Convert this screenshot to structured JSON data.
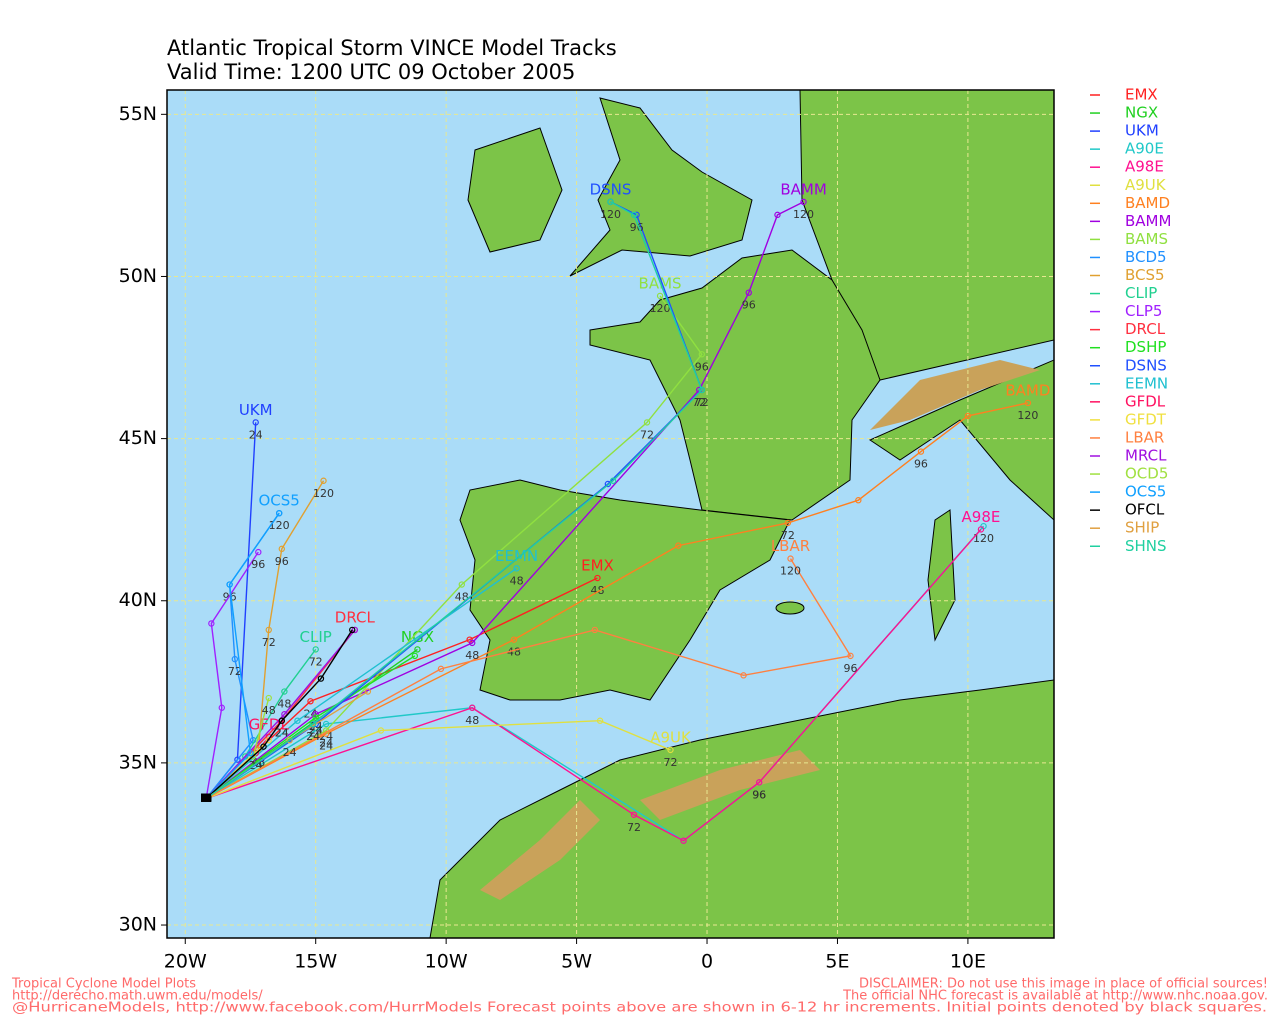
{
  "chart_data": {
    "type": "track-map",
    "title": [
      "Atlantic Tropical Storm VINCE Model Tracks",
      "Valid Time: 1200 UTC 09 October 2005"
    ],
    "footer_left": [
      "Tropical Cyclone Model Plots",
      "http://derecho.math.uwm.edu/models/",
      "@HurricaneModels, http://www.facebook.com/HurrModels  Forecast points above are shown in 6-12 hr increments. Initial points denoted by black squares."
    ],
    "footer_right": [
      "DISCLAIMER: Do not use this image in place of official sources!",
      "The official NHC forecast is available at http://www.nhc.noaa.gov."
    ],
    "xlim": [
      -20.7,
      13.3
    ],
    "ylim": [
      29.6,
      55.75
    ],
    "grid": true,
    "xticks": [
      {
        "value": -20,
        "label": "20W"
      },
      {
        "value": -15,
        "label": "15W"
      },
      {
        "value": -10,
        "label": "10W"
      },
      {
        "value": -5,
        "label": "5W"
      },
      0,
      {
        "value": 5,
        "label": "5E"
      },
      {
        "value": 10,
        "label": "10E"
      }
    ],
    "yticks": [
      {
        "value": 55,
        "label": "55N"
      },
      {
        "value": 50,
        "label": "50N"
      },
      {
        "value": 45,
        "label": "45N"
      },
      {
        "value": 40,
        "label": "40N"
      },
      {
        "value": 35,
        "label": "35N"
      },
      {
        "value": 30,
        "label": "30N"
      }
    ],
    "models": [
      {
        "name": "EMX",
        "color": "#ff2020",
        "labeled": true,
        "points": [
          [
            -19.2,
            33.9
          ],
          [
            -15.2,
            36.9
          ],
          [
            -9.1,
            38.8
          ],
          [
            -4.2,
            40.7
          ]
        ],
        "hours": [
          null,
          24,
          null,
          48
        ]
      },
      {
        "name": "NGX",
        "color": "#20d020",
        "labeled": true,
        "points": [
          [
            -19.2,
            33.9
          ],
          [
            -15.0,
            36.3
          ],
          [
            -11.1,
            38.5
          ]
        ],
        "hours": [
          null,
          24,
          null
        ]
      },
      {
        "name": "UKM",
        "color": "#2040ff",
        "labeled": true,
        "points": [
          [
            -19.2,
            33.9
          ],
          [
            -18.0,
            35.1
          ],
          [
            -17.3,
            45.5
          ]
        ],
        "hours": [
          null,
          null,
          24
        ]
      },
      {
        "name": "A90E",
        "color": "#20c8c8",
        "labeled": false,
        "points": [
          [
            -19.2,
            33.9
          ],
          [
            -14.6,
            36.2
          ],
          [
            -9.0,
            36.7
          ],
          [
            -0.9,
            32.6
          ],
          [
            2.0,
            34.4
          ],
          [
            10.6,
            42.3
          ]
        ],
        "hours": [
          null,
          24,
          null,
          null,
          96,
          120
        ]
      },
      {
        "name": "A98E",
        "color": "#ff1090",
        "labeled": true,
        "points": [
          [
            -19.2,
            33.9
          ],
          [
            -9.0,
            36.7
          ],
          [
            -2.8,
            33.4
          ],
          [
            -0.9,
            32.6
          ],
          [
            2.0,
            34.4
          ],
          [
            10.5,
            42.2
          ]
        ],
        "hours": [
          null,
          48,
          72,
          null,
          96,
          null
        ]
      },
      {
        "name": "A9UK",
        "color": "#e0e040",
        "labeled": true,
        "points": [
          [
            -19.2,
            33.9
          ],
          [
            -12.5,
            36.0
          ],
          [
            -4.1,
            36.3
          ],
          [
            -1.4,
            35.4
          ]
        ],
        "hours": [
          null,
          null,
          null,
          72
        ]
      },
      {
        "name": "BAMD",
        "color": "#ff8020",
        "labeled": true,
        "points": [
          [
            -19.2,
            33.9
          ],
          [
            -14.6,
            35.9
          ],
          [
            -7.4,
            38.8
          ],
          [
            -1.1,
            41.7
          ],
          [
            3.1,
            42.4
          ],
          [
            5.8,
            43.1
          ],
          [
            8.2,
            44.6
          ],
          [
            10.0,
            45.7
          ],
          [
            12.3,
            46.1
          ]
        ],
        "hours": [
          null,
          24,
          48,
          null,
          72,
          null,
          96,
          null,
          120
        ]
      },
      {
        "name": "BAMM",
        "color": "#a000e0",
        "labeled": true,
        "points": [
          [
            -19.2,
            33.9
          ],
          [
            -15.0,
            36.5
          ],
          [
            -9.0,
            38.7
          ],
          [
            -0.3,
            46.5
          ],
          [
            1.6,
            49.5
          ],
          [
            2.7,
            51.9
          ],
          [
            3.7,
            52.3
          ]
        ],
        "hours": [
          null,
          24,
          48,
          72,
          96,
          null,
          120
        ]
      },
      {
        "name": "BAMS",
        "color": "#90e040",
        "labeled": true,
        "points": [
          [
            -19.2,
            33.9
          ],
          [
            -14.6,
            36.0
          ],
          [
            -9.4,
            40.5
          ],
          [
            -2.3,
            45.5
          ],
          [
            -0.2,
            47.6
          ],
          [
            -1.8,
            49.4
          ]
        ],
        "hours": [
          null,
          24,
          48,
          72,
          96,
          120
        ]
      },
      {
        "name": "BCD5",
        "color": "#2090ff",
        "labeled": false,
        "points": [
          [
            -19.2,
            33.9
          ],
          [
            -17.4,
            35.7
          ],
          [
            -18.1,
            38.2
          ],
          [
            -18.3,
            40.5
          ],
          [
            -16.4,
            42.7
          ]
        ],
        "hours": [
          null,
          null,
          72,
          96,
          120
        ]
      },
      {
        "name": "BCS5",
        "color": "#e0a030",
        "labeled": false,
        "points": [
          [
            -19.2,
            33.9
          ],
          [
            -17.2,
            35.4
          ],
          [
            -16.8,
            39.1
          ],
          [
            -16.3,
            41.6
          ],
          [
            -14.7,
            43.7
          ]
        ],
        "hours": [
          null,
          48,
          72,
          96,
          120
        ]
      },
      {
        "name": "CLIP",
        "color": "#20d090",
        "labeled": true,
        "points": [
          [
            -19.2,
            33.9
          ],
          [
            -17.7,
            35.2
          ],
          [
            -16.2,
            37.2
          ],
          [
            -15.0,
            38.5
          ]
        ],
        "hours": [
          null,
          null,
          48,
          72
        ]
      },
      {
        "name": "CLP5",
        "color": "#a020ff",
        "labeled": false,
        "points": [
          [
            -19.2,
            33.9
          ],
          [
            -18.6,
            36.7
          ],
          [
            -19.0,
            39.3
          ],
          [
            -17.2,
            41.5
          ]
        ],
        "hours": [
          null,
          null,
          null,
          96
        ]
      },
      {
        "name": "DRCL",
        "color": "#ff3040",
        "labeled": true,
        "points": [
          [
            -19.2,
            33.9
          ],
          [
            -16.3,
            36.3
          ],
          [
            -13.5,
            39.1
          ]
        ],
        "hours": [
          null,
          24,
          null
        ]
      },
      {
        "name": "DSHP",
        "color": "#20e020",
        "labeled": false,
        "points": [
          [
            -19.2,
            33.9
          ],
          [
            -15.0,
            36.4
          ],
          [
            -11.2,
            38.3
          ]
        ],
        "hours": [
          null,
          24,
          null
        ]
      },
      {
        "name": "DSNS",
        "color": "#2050ff",
        "labeled": true,
        "points": [
          [
            -19.2,
            33.9
          ],
          [
            -15.0,
            36.2
          ],
          [
            -3.8,
            43.6
          ],
          [
            -0.2,
            46.5
          ],
          [
            -2.7,
            51.9
          ],
          [
            -3.7,
            52.3
          ]
        ],
        "hours": [
          null,
          null,
          null,
          72,
          96,
          120
        ]
      },
      {
        "name": "EEMN",
        "color": "#20c0d0",
        "labeled": true,
        "points": [
          [
            -19.2,
            33.9
          ],
          [
            -15.7,
            36.3
          ],
          [
            -7.3,
            41.0
          ]
        ],
        "hours": [
          null,
          null,
          48
        ]
      },
      {
        "name": "GFDL",
        "color": "#ff1060",
        "labeled": true,
        "points": [
          [
            -19.2,
            33.9
          ],
          [
            -17.3,
            35.3
          ],
          [
            -16.8,
            35.8
          ]
        ],
        "hours": [
          null,
          24,
          null
        ]
      },
      {
        "name": "GFDT",
        "color": "#f0e040",
        "labeled": false,
        "points": [
          [
            -19.2,
            33.9
          ],
          [
            -16.8,
            35.7
          ]
        ],
        "hours": [
          null,
          null
        ]
      },
      {
        "name": "LBAR",
        "color": "#ff8040",
        "labeled": true,
        "points": [
          [
            -19.2,
            33.9
          ],
          [
            -10.2,
            37.9
          ],
          [
            -4.3,
            39.1
          ],
          [
            1.4,
            37.7
          ],
          [
            5.5,
            38.3
          ],
          [
            3.2,
            41.3
          ]
        ],
        "hours": [
          null,
          null,
          null,
          null,
          96,
          120
        ]
      },
      {
        "name": "MRCL",
        "color": "#a010e0",
        "labeled": false,
        "points": [
          [
            -19.2,
            33.9
          ],
          [
            -16.2,
            36.5
          ],
          [
            -13.5,
            39.1
          ]
        ],
        "hours": [
          null,
          null,
          null
        ]
      },
      {
        "name": "OCD5",
        "color": "#a0e040",
        "labeled": false,
        "points": [
          [
            -19.2,
            33.9
          ],
          [
            -17.4,
            35.2
          ],
          [
            -16.8,
            37.0
          ]
        ],
        "hours": [
          null,
          null,
          48
        ]
      },
      {
        "name": "OCS5",
        "color": "#10a0ff",
        "labeled": true,
        "points": [
          [
            -19.2,
            33.9
          ],
          [
            -17.5,
            35.3
          ],
          [
            -18.3,
            40.5
          ],
          [
            -16.4,
            42.7
          ]
        ],
        "hours": [
          null,
          null,
          null,
          null
        ]
      },
      {
        "name": "OFCL",
        "color": "#000000",
        "labeled": false,
        "points": [
          [
            -19.2,
            33.9
          ],
          [
            -17.0,
            35.5
          ],
          [
            -16.3,
            36.3
          ],
          [
            -14.8,
            37.6
          ],
          [
            -13.6,
            39.1
          ]
        ],
        "hours": [
          null,
          null,
          24,
          null,
          null
        ]
      },
      {
        "name": "SHIP",
        "color": "#e0a040",
        "labeled": false,
        "points": [
          [
            -19.2,
            33.9
          ],
          [
            -16.0,
            35.7
          ],
          [
            -13.0,
            37.2
          ]
        ],
        "hours": [
          null,
          24,
          null
        ]
      },
      {
        "name": "SHNS",
        "color": "#20d0a0",
        "labeled": false,
        "points": [
          [
            -19.2,
            33.9
          ],
          [
            -15.1,
            36.2
          ],
          [
            -3.6,
            43.7
          ],
          [
            -0.2,
            46.5
          ],
          [
            -2.8,
            51.9
          ],
          [
            -3.7,
            52.3
          ]
        ],
        "hours": [
          null,
          24,
          null,
          null,
          null,
          null
        ]
      }
    ]
  }
}
